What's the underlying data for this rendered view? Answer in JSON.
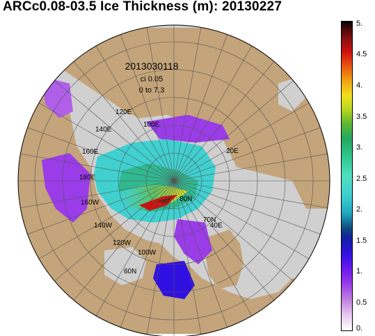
{
  "title": "ARCc0.08-03.5 Ice Thickness (m): 20130227",
  "inset": {
    "date": "2013030118",
    "ci": "ci  0.05",
    "range": "0 to 7.3"
  },
  "graticule_labels": [
    "120E",
    "140E",
    "100E",
    "160E",
    "20E",
    "180E",
    "80N",
    "160W",
    "70N",
    "40E",
    "140W",
    "120W",
    "100W",
    "60N"
  ],
  "colorbar": {
    "ticks": [
      "5.",
      "4.5",
      "4.",
      "3.5",
      "3.",
      "2.5",
      "2.",
      "1.5",
      "1.",
      "0.5",
      "0."
    ]
  },
  "colors": {
    "land": "#c4a47a",
    "ocean": "#d0d0d0",
    "grid": "#555555"
  }
}
